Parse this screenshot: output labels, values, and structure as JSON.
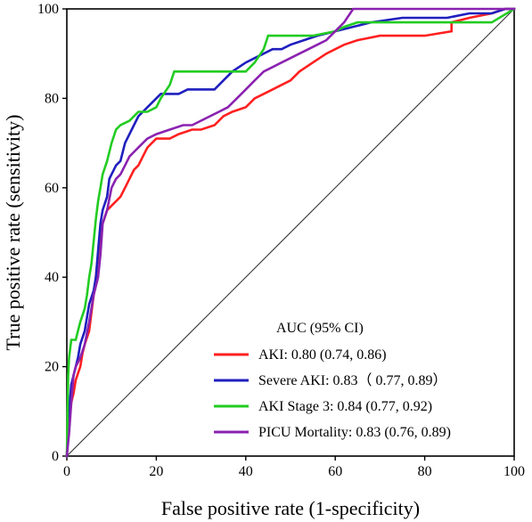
{
  "chart_data": {
    "type": "line",
    "title": "",
    "xlabel": "False positive rate (1-specificity)",
    "ylabel": "True positive rate (sensitivity)",
    "xlim": [
      0,
      100
    ],
    "ylim": [
      0,
      100
    ],
    "xticks": [
      "0",
      "20",
      "40",
      "60",
      "80",
      "100"
    ],
    "yticks": [
      "0",
      "20",
      "40",
      "60",
      "80",
      "100"
    ],
    "grid": false,
    "reference_line": true,
    "legend": {
      "title": "AUC (95% CI)",
      "placement": "bottom-right"
    },
    "series": [
      {
        "name": "AKI: 0.80 (0.74, 0.86)",
        "color": "#ff2020",
        "points": [
          [
            0,
            0
          ],
          [
            0.5,
            8
          ],
          [
            1,
            12
          ],
          [
            1.5,
            14
          ],
          [
            2,
            17
          ],
          [
            3,
            20
          ],
          [
            3.5,
            23
          ],
          [
            4,
            25
          ],
          [
            5,
            28
          ],
          [
            5.5,
            32
          ],
          [
            6,
            36
          ],
          [
            6.5,
            40
          ],
          [
            7,
            45
          ],
          [
            7.5,
            50
          ],
          [
            8,
            52
          ],
          [
            9,
            55
          ],
          [
            10,
            56
          ],
          [
            11,
            57
          ],
          [
            12,
            58
          ],
          [
            13,
            60
          ],
          [
            14,
            62
          ],
          [
            15,
            64
          ],
          [
            16,
            65
          ],
          [
            17,
            67
          ],
          [
            18,
            69
          ],
          [
            19,
            70
          ],
          [
            20,
            71
          ],
          [
            23,
            71
          ],
          [
            25,
            72
          ],
          [
            28,
            73
          ],
          [
            30,
            73
          ],
          [
            33,
            74
          ],
          [
            35,
            76
          ],
          [
            37,
            77
          ],
          [
            40,
            78
          ],
          [
            42,
            80
          ],
          [
            44,
            81
          ],
          [
            46,
            82
          ],
          [
            48,
            83
          ],
          [
            50,
            84
          ],
          [
            52,
            86
          ],
          [
            55,
            88
          ],
          [
            58,
            90
          ],
          [
            60,
            91
          ],
          [
            62,
            92
          ],
          [
            65,
            93
          ],
          [
            70,
            94
          ],
          [
            75,
            94
          ],
          [
            80,
            94
          ],
          [
            86,
            95
          ],
          [
            86,
            97
          ],
          [
            90,
            98
          ],
          [
            95,
            99
          ],
          [
            98,
            100
          ],
          [
            100,
            100
          ]
        ]
      },
      {
        "name": "Severe AKI: 0.83（ 0.77, 0.89）",
        "color": "#1f1fbf",
        "points": [
          [
            0,
            0
          ],
          [
            0.5,
            10
          ],
          [
            1,
            16
          ],
          [
            2,
            20
          ],
          [
            2.5,
            22
          ],
          [
            3,
            25
          ],
          [
            4,
            28
          ],
          [
            4.5,
            31
          ],
          [
            5,
            34
          ],
          [
            6,
            37
          ],
          [
            6.5,
            40
          ],
          [
            7,
            46
          ],
          [
            7.5,
            52
          ],
          [
            8,
            55
          ],
          [
            9,
            58
          ],
          [
            9.5,
            62
          ],
          [
            10,
            63
          ],
          [
            11,
            65
          ],
          [
            12,
            66
          ],
          [
            13,
            70
          ],
          [
            14,
            72
          ],
          [
            15,
            74
          ],
          [
            16,
            76
          ],
          [
            17,
            77
          ],
          [
            19,
            79
          ],
          [
            20,
            80
          ],
          [
            21,
            81
          ],
          [
            25,
            81
          ],
          [
            27,
            82
          ],
          [
            30,
            82
          ],
          [
            33,
            82
          ],
          [
            35,
            84
          ],
          [
            37,
            86
          ],
          [
            40,
            88
          ],
          [
            42,
            89
          ],
          [
            44,
            90
          ],
          [
            46,
            91
          ],
          [
            48,
            91
          ],
          [
            50,
            92
          ],
          [
            53,
            93
          ],
          [
            56,
            94
          ],
          [
            60,
            95
          ],
          [
            64,
            96
          ],
          [
            68,
            97
          ],
          [
            75,
            98
          ],
          [
            85,
            98
          ],
          [
            90,
            99
          ],
          [
            95,
            99
          ],
          [
            98,
            100
          ],
          [
            100,
            100
          ]
        ]
      },
      {
        "name": "AKI Stage 3: 0.84 (0.77, 0.92)",
        "color": "#22cc22",
        "points": [
          [
            0,
            0
          ],
          [
            0.3,
            18
          ],
          [
            0.5,
            22
          ],
          [
            1,
            26
          ],
          [
            2,
            26
          ],
          [
            2.5,
            28
          ],
          [
            3,
            30
          ],
          [
            4,
            33
          ],
          [
            4.5,
            36
          ],
          [
            5,
            40
          ],
          [
            5.5,
            43
          ],
          [
            6,
            48
          ],
          [
            6.5,
            53
          ],
          [
            7,
            57
          ],
          [
            7.5,
            60
          ],
          [
            8,
            63
          ],
          [
            9,
            66
          ],
          [
            10,
            70
          ],
          [
            11,
            73
          ],
          [
            12,
            74
          ],
          [
            14,
            75
          ],
          [
            16,
            77
          ],
          [
            18,
            77
          ],
          [
            20,
            78
          ],
          [
            21,
            80
          ],
          [
            23,
            83
          ],
          [
            24,
            86
          ],
          [
            30,
            86
          ],
          [
            34,
            86
          ],
          [
            40,
            86
          ],
          [
            42,
            88
          ],
          [
            44,
            91
          ],
          [
            45,
            94
          ],
          [
            50,
            94
          ],
          [
            55,
            94
          ],
          [
            60,
            95
          ],
          [
            62,
            96
          ],
          [
            65,
            97
          ],
          [
            70,
            97
          ],
          [
            80,
            97
          ],
          [
            90,
            97
          ],
          [
            95,
            97
          ],
          [
            100,
            100
          ]
        ]
      },
      {
        "name": "PICU Mortality: 0.83 (0.76, 0.89)",
        "color": "#8a22b0",
        "points": [
          [
            0,
            0
          ],
          [
            0.5,
            5
          ],
          [
            1,
            12
          ],
          [
            1.5,
            18
          ],
          [
            2,
            20
          ],
          [
            3,
            22
          ],
          [
            4,
            25
          ],
          [
            5,
            30
          ],
          [
            6,
            36
          ],
          [
            7,
            40
          ],
          [
            7.5,
            45
          ],
          [
            8,
            52
          ],
          [
            9,
            55
          ],
          [
            10,
            60
          ],
          [
            11,
            62
          ],
          [
            12,
            63
          ],
          [
            13,
            65
          ],
          [
            14,
            67
          ],
          [
            15,
            68
          ],
          [
            16,
            69
          ],
          [
            17,
            70
          ],
          [
            18,
            71
          ],
          [
            20,
            72
          ],
          [
            23,
            73
          ],
          [
            26,
            74
          ],
          [
            28,
            74
          ],
          [
            30,
            75
          ],
          [
            32,
            76
          ],
          [
            34,
            77
          ],
          [
            36,
            78
          ],
          [
            38,
            80
          ],
          [
            40,
            82
          ],
          [
            42,
            84
          ],
          [
            44,
            86
          ],
          [
            46,
            87
          ],
          [
            48,
            88
          ],
          [
            50,
            89
          ],
          [
            52,
            90
          ],
          [
            54,
            91
          ],
          [
            56,
            92
          ],
          [
            58,
            93
          ],
          [
            60,
            95
          ],
          [
            62,
            97
          ],
          [
            64,
            100
          ],
          [
            70,
            100
          ],
          [
            80,
            100
          ],
          [
            90,
            100
          ],
          [
            100,
            100
          ]
        ]
      }
    ]
  }
}
